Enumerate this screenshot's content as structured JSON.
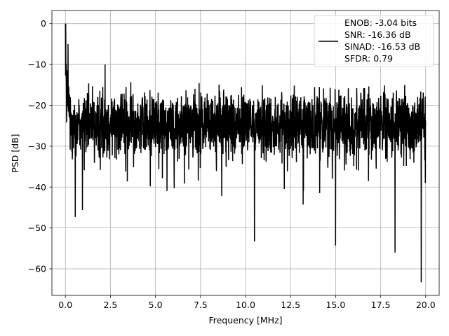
{
  "chart_data": {
    "type": "line",
    "title": "",
    "xlabel": "Frequency [MHz]",
    "ylabel": "PSD [dB]",
    "xlim": [
      -0.75,
      20.75
    ],
    "ylim": [
      -66.5,
      3.2
    ],
    "xticks": [
      0.0,
      2.5,
      5.0,
      7.5,
      10.0,
      12.5,
      15.0,
      17.5,
      20.0
    ],
    "xtick_labels": [
      "0.0",
      "2.5",
      "5.0",
      "7.5",
      "10.0",
      "12.5",
      "15.0",
      "17.5",
      "20.0"
    ],
    "yticks": [
      0,
      -10,
      -20,
      -30,
      -40,
      -50,
      -60
    ],
    "ytick_labels": [
      "0",
      "−10",
      "−20",
      "−30",
      "−40",
      "−50",
      "−60"
    ],
    "grid": true,
    "legend_position": "top-right",
    "series": [
      {
        "color": "#000000",
        "x_range": [
          0,
          20
        ],
        "peak": {
          "x": 0.0,
          "y": 0.0
        },
        "noise_floor_mean": -24,
        "noise_upper_envelope": -13,
        "noise_lower_envelope": -36,
        "notable_minima": [
          {
            "x": 0.55,
            "y": -47.3
          },
          {
            "x": 0.95,
            "y": -45.6
          },
          {
            "x": 10.5,
            "y": -53.3
          },
          {
            "x": 15.0,
            "y": -54.3
          },
          {
            "x": 18.3,
            "y": -56.0
          },
          {
            "x": 19.75,
            "y": -63.3
          }
        ],
        "notable_maxima": [
          {
            "x": 0.02,
            "y": 0.0
          },
          {
            "x": 0.15,
            "y": -5.0
          },
          {
            "x": 2.2,
            "y": -10.0
          }
        ]
      }
    ],
    "legend": {
      "lines": [
        "ENOB: -3.04 bits",
        "SNR: -16.36 dB",
        "SINAD: -16.53 dB",
        "SFDR: 0.79"
      ]
    }
  }
}
